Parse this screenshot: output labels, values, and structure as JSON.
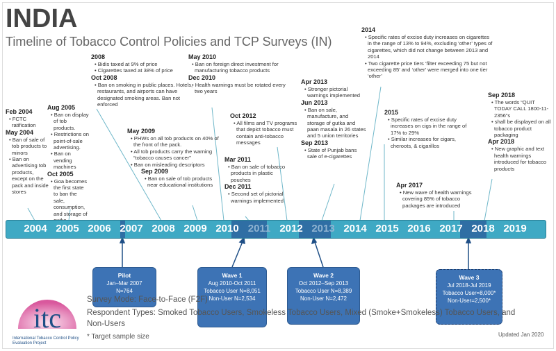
{
  "header": {
    "title": "INDIA",
    "subtitle": "Timeline of Tobacco Control Policies and TCP Surveys (IN)"
  },
  "events": [
    {
      "date": "Feb 2004",
      "items": [
        "FCTC ratification"
      ]
    },
    {
      "date": "May 2004",
      "items": [
        "Ban of sale of tob products to minors",
        "Ban on advertising tob products, except on the pack and inside stores"
      ]
    },
    {
      "date": "Aug 2005",
      "items": [
        "Ban on display of tob products.",
        "Restrictions on point-of-sale advertising.",
        "Ban on vending machines"
      ]
    },
    {
      "date": "Oct 2005",
      "items": [
        "Goa becomes the first state to ban the sale, consumption, and storage of gutka"
      ]
    },
    {
      "date": "2008",
      "items": [
        "Bidis taxed at 9% of price",
        "Cigarettes taxed at 38% of price"
      ]
    },
    {
      "date": "Oct 2008",
      "items": [
        "Ban on smoking in public places. Hotels, restaurants, and airports can have designated smoking areas. Ban not enforced"
      ]
    },
    {
      "date": "May 2009",
      "items": [
        "PHWs on all tob products on 40% of the front of the pack.",
        "All tob products carry the warning “tobacco causes cancer”",
        "Ban on misleading descriptors"
      ]
    },
    {
      "date": "Sep 2009",
      "items": [
        "Ban on sale of tob products near educational institutions"
      ]
    },
    {
      "date": "May 2010",
      "items": [
        "Ban on foreign direct investment for manufacturing tobacco products"
      ]
    },
    {
      "date": "Dec 2010",
      "items": [
        "Health warnings must be rotated every two years"
      ]
    },
    {
      "date": "Oct 2012",
      "items": [
        "All films and TV programs that depict tobacco must contain anti-tobacco messages"
      ]
    },
    {
      "date": "Mar 2011",
      "items": [
        "Ban on sale of tobacco products in plastic pouches"
      ]
    },
    {
      "date": "Dec 2011",
      "items": [
        "Second set of pictorial warnings implemented"
      ]
    },
    {
      "date": "Apr 2013",
      "items": [
        "Stronger pictorial warnings implemented"
      ]
    },
    {
      "date": "Jun 2013",
      "items": [
        "Ban on sale, manufacture, and storage of gutka and paan masala in 26 states and 5 union territories"
      ]
    },
    {
      "date": "Sep 2013",
      "items": [
        "State of Punjab bans sale of e-cigarettes"
      ]
    },
    {
      "date": "2014",
      "items": [
        "Specific rates of excise duty increases on cigarettes in the range of 13% to 94%, excluding ‘other’ types of cigarettes, which did not change between 2013 and 2014",
        "Two cigarette price tiers ‘filter exceeding 75 but not exceeding 85’ and ‘other’ were merged into one tier ‘other’"
      ]
    },
    {
      "date": "2015",
      "items": [
        "Specific rates of excise duty increases on cigs in the range of 17% to 29%",
        "Similar increases for cigars, cheroots, & cigarillos"
      ]
    },
    {
      "date": "Apr 2017",
      "items": [
        "New wave of health warnings covering 85% of tobacco packages are introduced"
      ]
    },
    {
      "date": "Sep 2018",
      "items": [
        "The words “QUIT TODAY CALL 1800-11-2356”s",
        "shall be displayed on all tobacco product packaging"
      ]
    },
    {
      "date": "Apr 2018",
      "items": [
        "New graphic and text health warnings introduced for tobacco products"
      ]
    }
  ],
  "years": [
    "2004",
    "2005",
    "2006",
    "2007",
    "2008",
    "2009",
    "2010",
    "2011",
    "2012",
    "2013",
    "2014",
    "2015",
    "2016",
    "2017",
    "2018",
    "2019"
  ],
  "waves": [
    {
      "name": "Pilot",
      "lines": [
        "Jan–Mar 2007",
        "N=764"
      ]
    },
    {
      "name": "Wave 1",
      "lines": [
        "Aug 2010-Oct 2011",
        "Tobacco User N=8,051",
        "Non-User N=2,534"
      ]
    },
    {
      "name": "Wave 2",
      "lines": [
        "Oct 2012–Sep 2013",
        "Tobacco User N=8,389",
        "Non-User N=2,472"
      ]
    },
    {
      "name": "Wave 3",
      "lines": [
        "Jul 2018-Jul 2019",
        "Tobacco User=8,000*",
        "Non-User=2,500*"
      ]
    }
  ],
  "footer": {
    "survey_mode": "Survey Mode: Face-to-Face (F2F)",
    "respondent_types": "Respondent Types: Smoked Tobacco Users, Smokeless Tobacco Users, Mixed (Smoke+Smokeless) Tobacco Users, and Non-Users",
    "note": "* Target sample size",
    "updated": "Updated Jan 2020"
  },
  "logo": {
    "text": "itc",
    "caption": "International Tobacco Control Policy Evaluation Project"
  },
  "colors": {
    "bar": "#3fa9c4",
    "wave_box": "#3d73b5",
    "highlight": "#2f6ea4"
  }
}
